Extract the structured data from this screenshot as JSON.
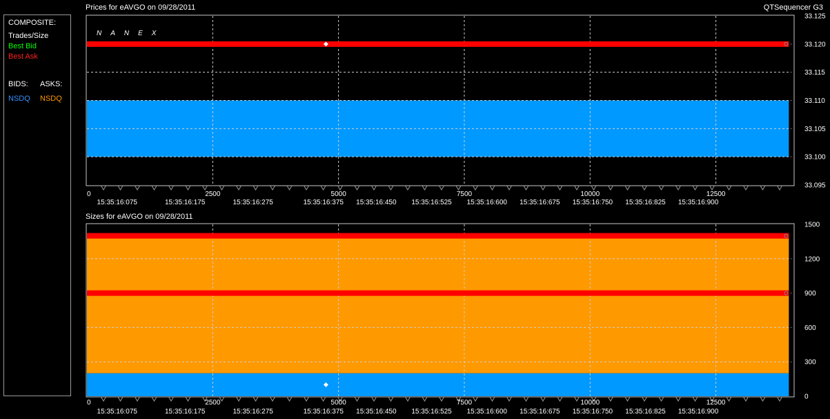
{
  "legend": {
    "composite": "COMPOSITE:",
    "trades": "Trades/Size",
    "best_bid": "Best Bid",
    "best_ask": "Best Ask",
    "bids": "BIDS:",
    "asks": "ASKS:",
    "bid_exchange": "NSDQ",
    "ask_exchange": "NSDQ",
    "colors": {
      "trades": "#ffffff",
      "best_bid": "#00ff00",
      "best_ask": "#ff2020",
      "bid_exchange": "#3a8fff",
      "ask_exchange": "#ff9900"
    }
  },
  "header": {
    "prices_title": "Prices for  eAVGO  on  09/28/2011",
    "sizes_title": "Sizes for  eAVGO  on  09/28/2011",
    "app": "QTSequencer G3"
  },
  "watermark": "NANEX",
  "chart_data": [
    {
      "type": "line",
      "name": "prices",
      "title": "Prices for  eAVGO  on  09/28/2011",
      "xlim": [
        0,
        14000
      ],
      "ylim": [
        33.095,
        33.125
      ],
      "x_ticks": [
        0,
        2500,
        5000,
        7500,
        10000,
        12500
      ],
      "x_tick_labels": [
        "0",
        "2500",
        "5000",
        "7500",
        "10000",
        "12500"
      ],
      "y_ticks": [
        33.095,
        33.1,
        33.105,
        33.11,
        33.115,
        33.12,
        33.125
      ],
      "y_tick_labels": [
        "33.095",
        "33.100",
        "33.105",
        "33.110",
        "33.115",
        "33.120",
        "33.125"
      ],
      "time_labels": [
        {
          "x": 600,
          "label": "15:35:16:075"
        },
        {
          "x": 1950,
          "label": "15:35:16:175"
        },
        {
          "x": 3300,
          "label": "15:35:16:275"
        },
        {
          "x": 4700,
          "label": "15:35:16:375"
        },
        {
          "x": 5750,
          "label": "15:35:16:450"
        },
        {
          "x": 6850,
          "label": "15:35:16:525"
        },
        {
          "x": 7950,
          "label": "15:35:16:600"
        },
        {
          "x": 9000,
          "label": "15:35:16:675"
        },
        {
          "x": 10050,
          "label": "15:35:16:750"
        },
        {
          "x": 11100,
          "label": "15:35:16:825"
        },
        {
          "x": 12150,
          "label": "15:35:16:900"
        }
      ],
      "grid": "dashed",
      "series": [
        {
          "kind": "band",
          "color": "#0099ff",
          "x": [
            0,
            13950
          ],
          "y_low": 33.1,
          "y_high": 33.11
        },
        {
          "kind": "line",
          "color": "#ff0000",
          "x": [
            0,
            13950
          ],
          "y": [
            33.12,
            33.12
          ]
        }
      ],
      "trades": [
        {
          "x": 4750,
          "y": 33.12
        }
      ]
    },
    {
      "type": "area",
      "name": "sizes",
      "title": "Sizes for  eAVGO  on  09/28/2011",
      "xlim": [
        0,
        14000
      ],
      "ylim": [
        0,
        1500
      ],
      "x_ticks": [
        0,
        2500,
        5000,
        7500,
        10000,
        12500
      ],
      "x_tick_labels": [
        "0",
        "2500",
        "5000",
        "7500",
        "10000",
        "12500"
      ],
      "y_ticks": [
        0,
        300,
        600,
        900,
        1200,
        1500
      ],
      "y_tick_labels": [
        "0",
        "300",
        "600",
        "900",
        "1200",
        "1500"
      ],
      "time_labels": [
        {
          "x": 600,
          "label": "15:35:16:075"
        },
        {
          "x": 1950,
          "label": "15:35:16:175"
        },
        {
          "x": 3300,
          "label": "15:35:16:275"
        },
        {
          "x": 4700,
          "label": "15:35:16:375"
        },
        {
          "x": 5750,
          "label": "15:35:16:450"
        },
        {
          "x": 6850,
          "label": "15:35:16:525"
        },
        {
          "x": 7950,
          "label": "15:35:16:600"
        },
        {
          "x": 9000,
          "label": "15:35:16:675"
        },
        {
          "x": 10050,
          "label": "15:35:16:750"
        },
        {
          "x": 11100,
          "label": "15:35:16:825"
        },
        {
          "x": 12150,
          "label": "15:35:16:900"
        }
      ],
      "grid": "dashed",
      "series": [
        {
          "kind": "band",
          "color": "#ff9900",
          "x": [
            0,
            13950
          ],
          "y_low": 200,
          "y_high": 1400
        },
        {
          "kind": "band",
          "color": "#0099ff",
          "x": [
            0,
            13950
          ],
          "y_low": 0,
          "y_high": 200
        },
        {
          "kind": "line",
          "color": "#ff0000",
          "x": [
            0,
            13950
          ],
          "y": [
            1400,
            1400
          ]
        },
        {
          "kind": "line",
          "color": "#ff0000",
          "x": [
            0,
            13950
          ],
          "y": [
            900,
            900
          ]
        }
      ],
      "trades": [
        {
          "x": 4750,
          "y": 100
        }
      ]
    }
  ]
}
